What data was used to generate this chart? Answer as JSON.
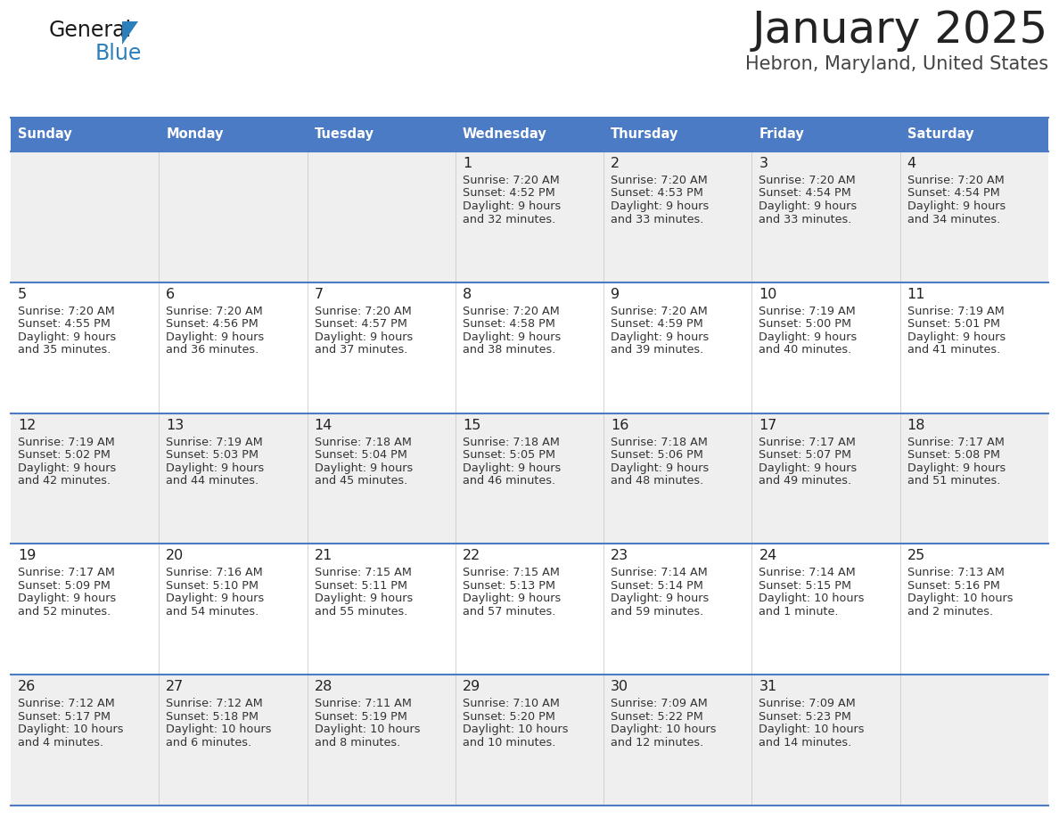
{
  "title": "January 2025",
  "subtitle": "Hebron, Maryland, United States",
  "header_bg": "#4A7BC4",
  "header_text": "#FFFFFF",
  "day_names": [
    "Sunday",
    "Monday",
    "Tuesday",
    "Wednesday",
    "Thursday",
    "Friday",
    "Saturday"
  ],
  "row_bg_even": "#EFEFEF",
  "row_bg_odd": "#FFFFFF",
  "separator_color": "#4A7BC4",
  "date_color": "#222222",
  "cell_text_color": "#333333",
  "logo_general_color": "#1a1a1a",
  "logo_blue_color": "#2B7FBB",
  "calendar": [
    [
      {
        "day": "",
        "sunrise": "",
        "sunset": "",
        "daylight_line1": "",
        "daylight_line2": ""
      },
      {
        "day": "",
        "sunrise": "",
        "sunset": "",
        "daylight_line1": "",
        "daylight_line2": ""
      },
      {
        "day": "",
        "sunrise": "",
        "sunset": "",
        "daylight_line1": "",
        "daylight_line2": ""
      },
      {
        "day": "1",
        "sunrise": "Sunrise: 7:20 AM",
        "sunset": "Sunset: 4:52 PM",
        "daylight_line1": "Daylight: 9 hours",
        "daylight_line2": "and 32 minutes."
      },
      {
        "day": "2",
        "sunrise": "Sunrise: 7:20 AM",
        "sunset": "Sunset: 4:53 PM",
        "daylight_line1": "Daylight: 9 hours",
        "daylight_line2": "and 33 minutes."
      },
      {
        "day": "3",
        "sunrise": "Sunrise: 7:20 AM",
        "sunset": "Sunset: 4:54 PM",
        "daylight_line1": "Daylight: 9 hours",
        "daylight_line2": "and 33 minutes."
      },
      {
        "day": "4",
        "sunrise": "Sunrise: 7:20 AM",
        "sunset": "Sunset: 4:54 PM",
        "daylight_line1": "Daylight: 9 hours",
        "daylight_line2": "and 34 minutes."
      }
    ],
    [
      {
        "day": "5",
        "sunrise": "Sunrise: 7:20 AM",
        "sunset": "Sunset: 4:55 PM",
        "daylight_line1": "Daylight: 9 hours",
        "daylight_line2": "and 35 minutes."
      },
      {
        "day": "6",
        "sunrise": "Sunrise: 7:20 AM",
        "sunset": "Sunset: 4:56 PM",
        "daylight_line1": "Daylight: 9 hours",
        "daylight_line2": "and 36 minutes."
      },
      {
        "day": "7",
        "sunrise": "Sunrise: 7:20 AM",
        "sunset": "Sunset: 4:57 PM",
        "daylight_line1": "Daylight: 9 hours",
        "daylight_line2": "and 37 minutes."
      },
      {
        "day": "8",
        "sunrise": "Sunrise: 7:20 AM",
        "sunset": "Sunset: 4:58 PM",
        "daylight_line1": "Daylight: 9 hours",
        "daylight_line2": "and 38 minutes."
      },
      {
        "day": "9",
        "sunrise": "Sunrise: 7:20 AM",
        "sunset": "Sunset: 4:59 PM",
        "daylight_line1": "Daylight: 9 hours",
        "daylight_line2": "and 39 minutes."
      },
      {
        "day": "10",
        "sunrise": "Sunrise: 7:19 AM",
        "sunset": "Sunset: 5:00 PM",
        "daylight_line1": "Daylight: 9 hours",
        "daylight_line2": "and 40 minutes."
      },
      {
        "day": "11",
        "sunrise": "Sunrise: 7:19 AM",
        "sunset": "Sunset: 5:01 PM",
        "daylight_line1": "Daylight: 9 hours",
        "daylight_line2": "and 41 minutes."
      }
    ],
    [
      {
        "day": "12",
        "sunrise": "Sunrise: 7:19 AM",
        "sunset": "Sunset: 5:02 PM",
        "daylight_line1": "Daylight: 9 hours",
        "daylight_line2": "and 42 minutes."
      },
      {
        "day": "13",
        "sunrise": "Sunrise: 7:19 AM",
        "sunset": "Sunset: 5:03 PM",
        "daylight_line1": "Daylight: 9 hours",
        "daylight_line2": "and 44 minutes."
      },
      {
        "day": "14",
        "sunrise": "Sunrise: 7:18 AM",
        "sunset": "Sunset: 5:04 PM",
        "daylight_line1": "Daylight: 9 hours",
        "daylight_line2": "and 45 minutes."
      },
      {
        "day": "15",
        "sunrise": "Sunrise: 7:18 AM",
        "sunset": "Sunset: 5:05 PM",
        "daylight_line1": "Daylight: 9 hours",
        "daylight_line2": "and 46 minutes."
      },
      {
        "day": "16",
        "sunrise": "Sunrise: 7:18 AM",
        "sunset": "Sunset: 5:06 PM",
        "daylight_line1": "Daylight: 9 hours",
        "daylight_line2": "and 48 minutes."
      },
      {
        "day": "17",
        "sunrise": "Sunrise: 7:17 AM",
        "sunset": "Sunset: 5:07 PM",
        "daylight_line1": "Daylight: 9 hours",
        "daylight_line2": "and 49 minutes."
      },
      {
        "day": "18",
        "sunrise": "Sunrise: 7:17 AM",
        "sunset": "Sunset: 5:08 PM",
        "daylight_line1": "Daylight: 9 hours",
        "daylight_line2": "and 51 minutes."
      }
    ],
    [
      {
        "day": "19",
        "sunrise": "Sunrise: 7:17 AM",
        "sunset": "Sunset: 5:09 PM",
        "daylight_line1": "Daylight: 9 hours",
        "daylight_line2": "and 52 minutes."
      },
      {
        "day": "20",
        "sunrise": "Sunrise: 7:16 AM",
        "sunset": "Sunset: 5:10 PM",
        "daylight_line1": "Daylight: 9 hours",
        "daylight_line2": "and 54 minutes."
      },
      {
        "day": "21",
        "sunrise": "Sunrise: 7:15 AM",
        "sunset": "Sunset: 5:11 PM",
        "daylight_line1": "Daylight: 9 hours",
        "daylight_line2": "and 55 minutes."
      },
      {
        "day": "22",
        "sunrise": "Sunrise: 7:15 AM",
        "sunset": "Sunset: 5:13 PM",
        "daylight_line1": "Daylight: 9 hours",
        "daylight_line2": "and 57 minutes."
      },
      {
        "day": "23",
        "sunrise": "Sunrise: 7:14 AM",
        "sunset": "Sunset: 5:14 PM",
        "daylight_line1": "Daylight: 9 hours",
        "daylight_line2": "and 59 minutes."
      },
      {
        "day": "24",
        "sunrise": "Sunrise: 7:14 AM",
        "sunset": "Sunset: 5:15 PM",
        "daylight_line1": "Daylight: 10 hours",
        "daylight_line2": "and 1 minute."
      },
      {
        "day": "25",
        "sunrise": "Sunrise: 7:13 AM",
        "sunset": "Sunset: 5:16 PM",
        "daylight_line1": "Daylight: 10 hours",
        "daylight_line2": "and 2 minutes."
      }
    ],
    [
      {
        "day": "26",
        "sunrise": "Sunrise: 7:12 AM",
        "sunset": "Sunset: 5:17 PM",
        "daylight_line1": "Daylight: 10 hours",
        "daylight_line2": "and 4 minutes."
      },
      {
        "day": "27",
        "sunrise": "Sunrise: 7:12 AM",
        "sunset": "Sunset: 5:18 PM",
        "daylight_line1": "Daylight: 10 hours",
        "daylight_line2": "and 6 minutes."
      },
      {
        "day": "28",
        "sunrise": "Sunrise: 7:11 AM",
        "sunset": "Sunset: 5:19 PM",
        "daylight_line1": "Daylight: 10 hours",
        "daylight_line2": "and 8 minutes."
      },
      {
        "day": "29",
        "sunrise": "Sunrise: 7:10 AM",
        "sunset": "Sunset: 5:20 PM",
        "daylight_line1": "Daylight: 10 hours",
        "daylight_line2": "and 10 minutes."
      },
      {
        "day": "30",
        "sunrise": "Sunrise: 7:09 AM",
        "sunset": "Sunset: 5:22 PM",
        "daylight_line1": "Daylight: 10 hours",
        "daylight_line2": "and 12 minutes."
      },
      {
        "day": "31",
        "sunrise": "Sunrise: 7:09 AM",
        "sunset": "Sunset: 5:23 PM",
        "daylight_line1": "Daylight: 10 hours",
        "daylight_line2": "and 14 minutes."
      },
      {
        "day": "",
        "sunrise": "",
        "sunset": "",
        "daylight_line1": "",
        "daylight_line2": ""
      }
    ]
  ]
}
